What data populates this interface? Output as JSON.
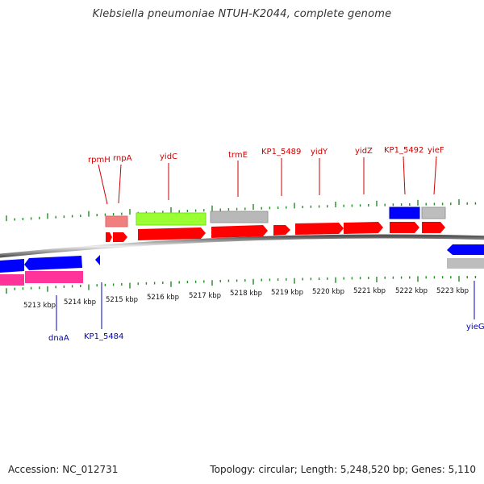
{
  "title": "Klebsiella pneumoniae NTUH-K2044, complete genome",
  "footer": {
    "accession": "Accession: NC_012731",
    "summary": "Topology: circular; Length: 5,248,520 bp; Genes: 5,110"
  },
  "colors": {
    "cds": "#ff0000",
    "rna": "#ff8080",
    "trna": "#99ff33",
    "misc": "#b0b0b0",
    "blue_gene": "#0000ff",
    "pink_gene": "#ff3399",
    "forward_label": "#cc0000",
    "reverse_label": "#0000bb",
    "ticks": "#228b22",
    "backbone": "#777777"
  },
  "scale_labels": [
    "5213 kbp",
    "5214 kbp",
    "5215 kbp",
    "5216 kbp",
    "5217 kbp",
    "5218 kbp",
    "5219 kbp",
    "5220 kbp",
    "5221 kbp",
    "5222 kbp",
    "5223 kbp"
  ],
  "forward_labels": [
    "rpmH",
    "rnpA",
    "yidC",
    "trmE",
    "KP1_5489",
    "yidY",
    "yidZ",
    "KP1_5492",
    "yieF"
  ],
  "reverse_labels": [
    "dnaA",
    "KP1_5484",
    "yieG"
  ]
}
